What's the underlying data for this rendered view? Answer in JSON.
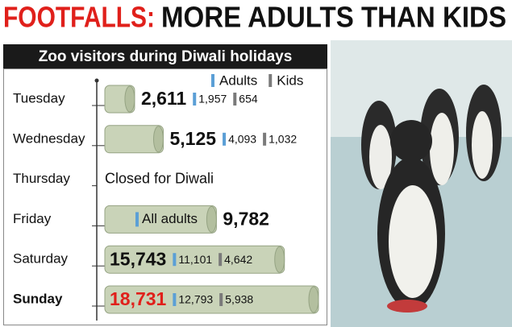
{
  "chart_data": {
    "type": "bar",
    "title_highlight": "FOOTFALLS:",
    "title": "MORE ADULTS THAN KIDS",
    "subtitle": "Zoo visitors during Diwali holidays",
    "categories": [
      "Tuesday",
      "Wednesday",
      "Thursday",
      "Friday",
      "Saturday",
      "Sunday"
    ],
    "values": [
      2611,
      5125,
      null,
      9782,
      15743,
      18731
    ],
    "value_labels": [
      "2,611",
      "5,125",
      null,
      "9,782",
      "15,743",
      "18,731"
    ],
    "color": "#c9d3b8",
    "series": [
      {
        "name": "Adults",
        "color": "#5b9fd6",
        "values": [
          1957,
          4093,
          null,
          null,
          11101,
          12793
        ],
        "value_labels": [
          "1,957",
          "4,093",
          null,
          null,
          "11,101",
          "12,793"
        ]
      },
      {
        "name": "Kids",
        "color": "#7a7a7a",
        "values": [
          654,
          1032,
          null,
          null,
          4642,
          5938
        ],
        "value_labels": [
          "654",
          "1,032",
          null,
          null,
          "4,642",
          "5,938"
        ]
      }
    ],
    "annotations": [
      "Closed for Diwali",
      "All adults"
    ]
  }
}
